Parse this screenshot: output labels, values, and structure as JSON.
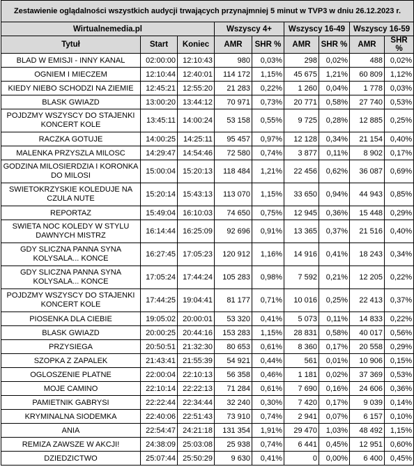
{
  "title": "Zestawienie oglądalności wszystkich audycji trwających przynajmniej 5 minut w TVP3 w dniu 26.12.2023 r.",
  "source": "Wirtualnemedia.pl",
  "groups": [
    "Wszyscy 4+",
    "Wszyscy 16-49",
    "Wszyscy 16-59"
  ],
  "columns": [
    "Tytuł",
    "Start",
    "Koniec",
    "AMR",
    "SHR %",
    "AMR",
    "SHR %",
    "AMR",
    "SHR %"
  ],
  "rows": [
    [
      "BLAD W EMISJI - INNY KANAL",
      "02:00:00",
      "12:10:43",
      "980",
      "0,03%",
      "298",
      "0,02%",
      "488",
      "0,02%"
    ],
    [
      "OGNIEM I MIECZEM",
      "12:10:44",
      "12:40:01",
      "114 172",
      "1,15%",
      "45 675",
      "1,21%",
      "60 809",
      "1,12%"
    ],
    [
      "KIEDY NIEBO SCHODZI NA ZIEMIE",
      "12:45:21",
      "12:55:20",
      "21 283",
      "0,22%",
      "1 260",
      "0,04%",
      "1 778",
      "0,03%"
    ],
    [
      "BLASK GWIAZD",
      "13:00:20",
      "13:44:12",
      "70 971",
      "0,73%",
      "20 771",
      "0,58%",
      "27 740",
      "0,53%"
    ],
    [
      "POJDZMY WSZYSCY DO STAJENKI KONCERT KOLE",
      "13:45:11",
      "14:00:24",
      "53 158",
      "0,55%",
      "9 725",
      "0,28%",
      "12 885",
      "0,25%"
    ],
    [
      "RACZKA GOTUJE",
      "14:00:25",
      "14:25:11",
      "95 457",
      "0,97%",
      "12 128",
      "0,34%",
      "21 154",
      "0,40%"
    ],
    [
      "MALENKA PRZYSZLA MILOSC",
      "14:29:47",
      "14:54:46",
      "72 580",
      "0,74%",
      "3 877",
      "0,11%",
      "8 902",
      "0,17%"
    ],
    [
      "GODZINA MILOSIERDZIA I KORONKA DO MILOSI",
      "15:00:04",
      "15:20:13",
      "118 484",
      "1,21%",
      "22 456",
      "0,62%",
      "36 087",
      "0,69%"
    ],
    [
      "SWIETOKRZYSKIE KOLEDUJE NA CZULA NUTE",
      "15:20:14",
      "15:43:13",
      "113 070",
      "1,15%",
      "33 650",
      "0,94%",
      "44 943",
      "0,85%"
    ],
    [
      "REPORTAZ",
      "15:49:04",
      "16:10:03",
      "74 650",
      "0,75%",
      "12 945",
      "0,36%",
      "15 448",
      "0,29%"
    ],
    [
      "SWIETA NOC KOLEDY W STYLU DAWNYCH MISTRZ",
      "16:14:44",
      "16:25:09",
      "92 696",
      "0,91%",
      "13 365",
      "0,37%",
      "21 516",
      "0,40%"
    ],
    [
      "GDY SLICZNA PANNA SYNA KOLYSALA... KONCE",
      "16:27:45",
      "17:05:23",
      "120 912",
      "1,16%",
      "14 916",
      "0,41%",
      "18 243",
      "0,34%"
    ],
    [
      "GDY SLICZNA PANNA SYNA KOLYSALA... KONCE",
      "17:05:24",
      "17:44:24",
      "105 283",
      "0,98%",
      "7 592",
      "0,21%",
      "12 205",
      "0,22%"
    ],
    [
      "POJDZMY WSZYSCY DO STAJENKI KONCERT KOLE",
      "17:44:25",
      "19:04:41",
      "81 177",
      "0,71%",
      "10 016",
      "0,25%",
      "22 413",
      "0,37%"
    ],
    [
      "PIOSENKA DLA CIEBIE",
      "19:05:02",
      "20:00:01",
      "53 320",
      "0,41%",
      "5 073",
      "0,11%",
      "14 833",
      "0,22%"
    ],
    [
      "BLASK GWIAZD",
      "20:00:25",
      "20:44:16",
      "153 283",
      "1,15%",
      "28 831",
      "0,58%",
      "40 017",
      "0,56%"
    ],
    [
      "PRZYSIEGA",
      "20:50:51",
      "21:32:30",
      "80 653",
      "0,61%",
      "8 360",
      "0,17%",
      "20 558",
      "0,29%"
    ],
    [
      "SZOPKA Z ZAPALEK",
      "21:43:41",
      "21:55:39",
      "54 921",
      "0,44%",
      "561",
      "0,01%",
      "10 906",
      "0,15%"
    ],
    [
      "OGLOSZENIE PLATNE",
      "22:00:04",
      "22:10:13",
      "56 358",
      "0,46%",
      "1 181",
      "0,02%",
      "37 369",
      "0,53%"
    ],
    [
      "MOJE CAMINO",
      "22:10:14",
      "22:22:13",
      "71 284",
      "0,61%",
      "7 690",
      "0,16%",
      "24 606",
      "0,36%"
    ],
    [
      "PAMIETNIK GABRYSI",
      "22:22:44",
      "22:34:44",
      "32 240",
      "0,30%",
      "7 420",
      "0,17%",
      "9 039",
      "0,14%"
    ],
    [
      "KRYMINALNA SIODEMKA",
      "22:40:06",
      "22:51:43",
      "73 910",
      "0,74%",
      "2 941",
      "0,07%",
      "6 157",
      "0,10%"
    ],
    [
      "ANIA",
      "22:54:47",
      "24:21:18",
      "131 354",
      "1,91%",
      "29 470",
      "1,03%",
      "48 492",
      "1,15%"
    ],
    [
      "REMIZA ZAWSZE W AKCJI!",
      "24:38:09",
      "25:03:08",
      "25 938",
      "0,74%",
      "6 441",
      "0,45%",
      "12 951",
      "0,60%"
    ],
    [
      "DZIEDZICTWO",
      "25:07:44",
      "25:50:29",
      "9 630",
      "0,41%",
      "0",
      "0,00%",
      "6 400",
      "0,45%"
    ]
  ],
  "tall_rows": [
    4,
    7,
    8,
    10,
    11,
    12,
    13
  ]
}
